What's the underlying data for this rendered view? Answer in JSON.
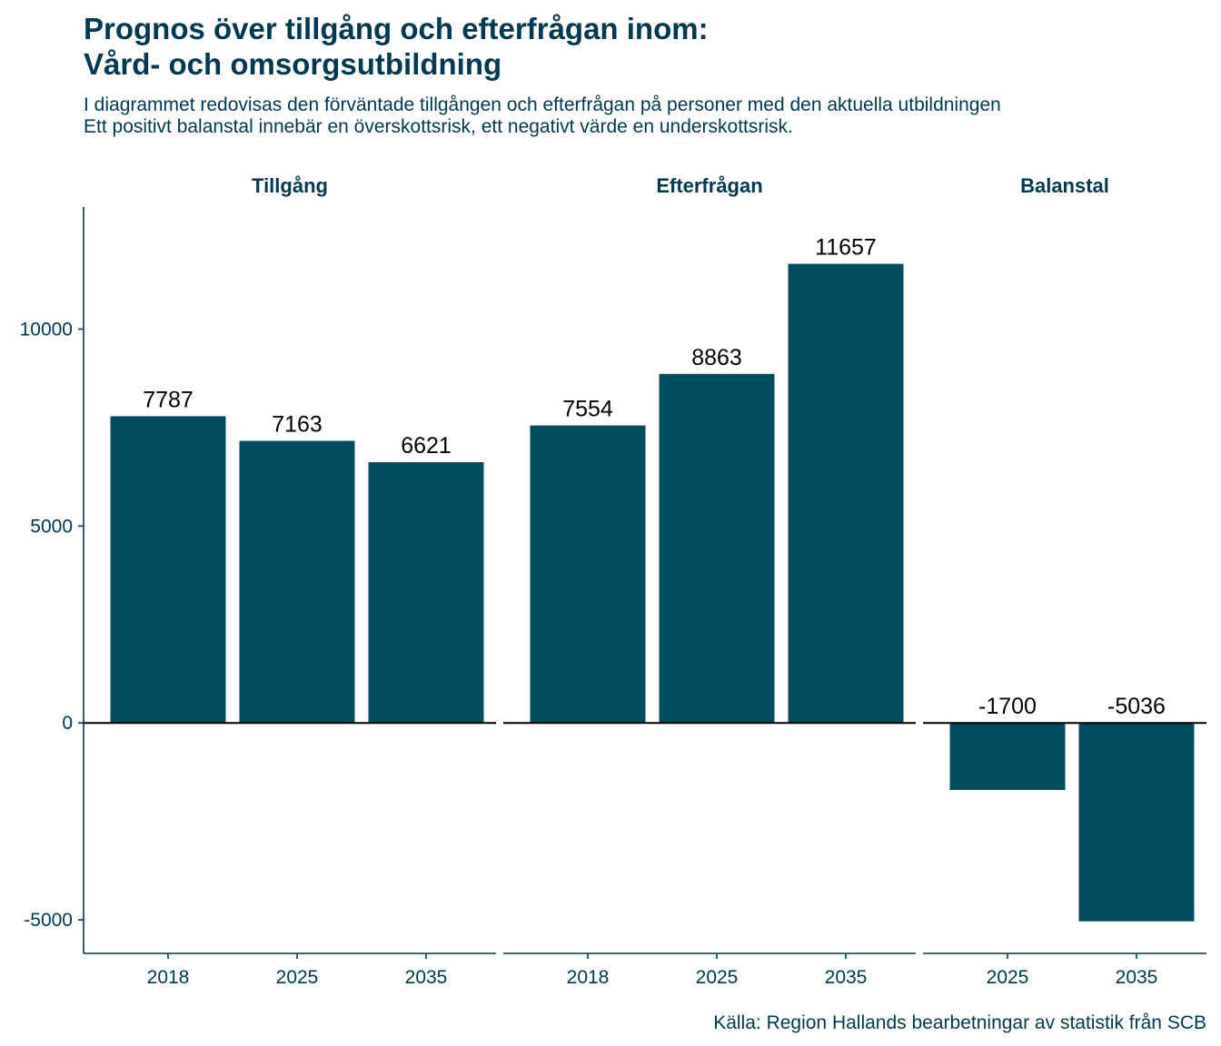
{
  "title_line1": "Prognos över tillgång och efterfrågan inom:",
  "title_line2": "Vård- och omsorgsutbildning",
  "subtitle_line1": "I diagrammet redovisas den förväntade tillgången och efterfrågan på personer med den aktuella utbildningen",
  "subtitle_line2": "Ett positivt balanstal innebär en överskottsrisk, ett negativt värde en underskottsrisk.",
  "caption": "Källa: Region Hallands bearbetningar av statistik från SCB",
  "colors": {
    "bar": "#004b5e",
    "text": "#00394f",
    "axis": "#00394f",
    "zero_line": "#000000"
  },
  "chart_data": {
    "type": "bar",
    "facets": [
      {
        "name": "Tillgång",
        "categories": [
          "2018",
          "2025",
          "2035"
        ],
        "values": [
          7787,
          7163,
          6621
        ]
      },
      {
        "name": "Efterfrågan",
        "categories": [
          "2018",
          "2025",
          "2035"
        ],
        "values": [
          7554,
          8863,
          11657
        ]
      },
      {
        "name": "Balanstal",
        "categories": [
          "2025",
          "2035"
        ],
        "values": [
          -1700,
          -5036
        ]
      }
    ],
    "yticks": [
      -5000,
      0,
      5000,
      10000
    ],
    "ylim": [
      -5850,
      13100
    ],
    "grid": false,
    "legend": "none"
  }
}
